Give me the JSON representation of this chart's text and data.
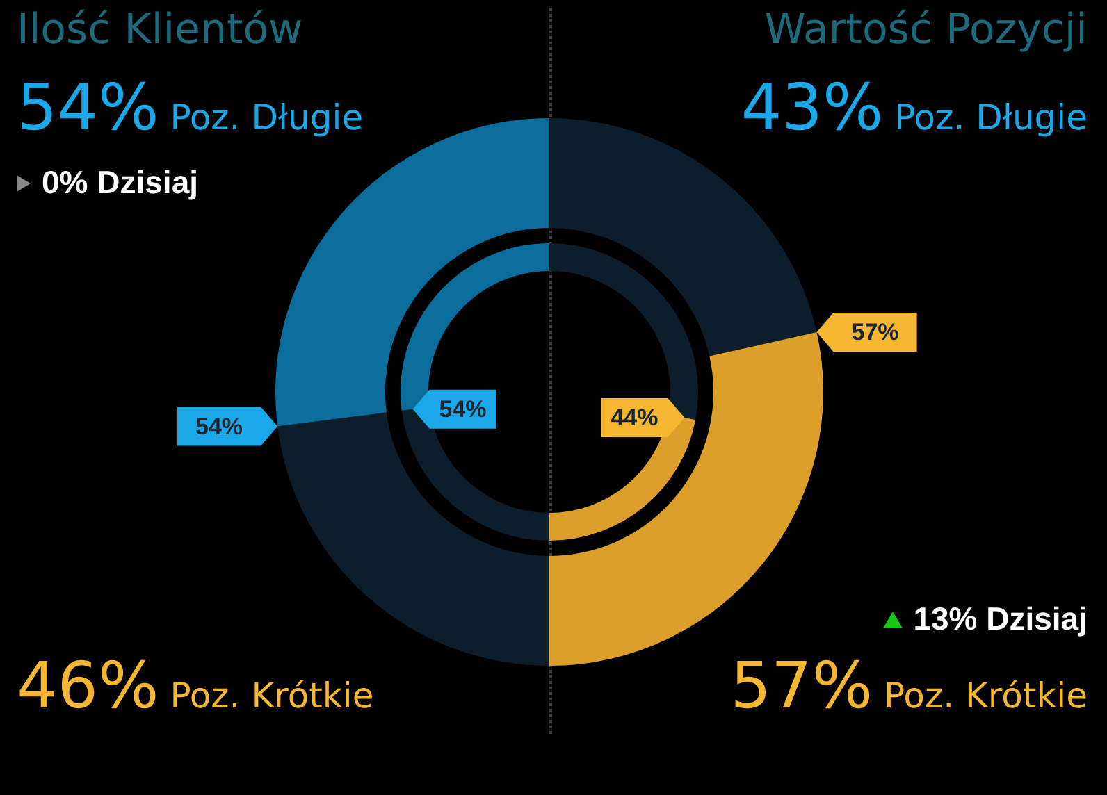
{
  "chart_data": [
    {
      "type": "donut",
      "title": "Ilość Klientów",
      "categories": [
        "Poz. Długie",
        "Poz. Krótkie"
      ],
      "legend": false,
      "series": [
        {
          "values": [
            54,
            46
          ],
          "colors": [
            "#0a6d9b",
            "#0c1d2b"
          ],
          "value_labels": [
            "54%",
            "46%"
          ]
        },
        {
          "values": [
            54,
            46
          ],
          "colors": [
            "#0a6d9b",
            "#0c1d2b"
          ],
          "value_labels": [
            "54%",
            null
          ]
        }
      ],
      "annotations": [
        "0% Dzisiaj"
      ]
    },
    {
      "type": "donut",
      "title": "Wartość Pozycji",
      "categories": [
        "Poz. Długie",
        "Poz. Krótkie"
      ],
      "legend": false,
      "series": [
        {
          "values": [
            43,
            57
          ],
          "colors": [
            "#0c1d2b",
            "#dc9f2a"
          ],
          "value_labels": [
            "43%",
            "57%"
          ]
        },
        {
          "values": [
            56,
            44
          ],
          "colors": [
            "#0c1d2b",
            "#dc9f2a"
          ],
          "value_labels": [
            null,
            "44%"
          ]
        }
      ],
      "annotations": [
        "13% Dzisiaj"
      ]
    }
  ]
}
